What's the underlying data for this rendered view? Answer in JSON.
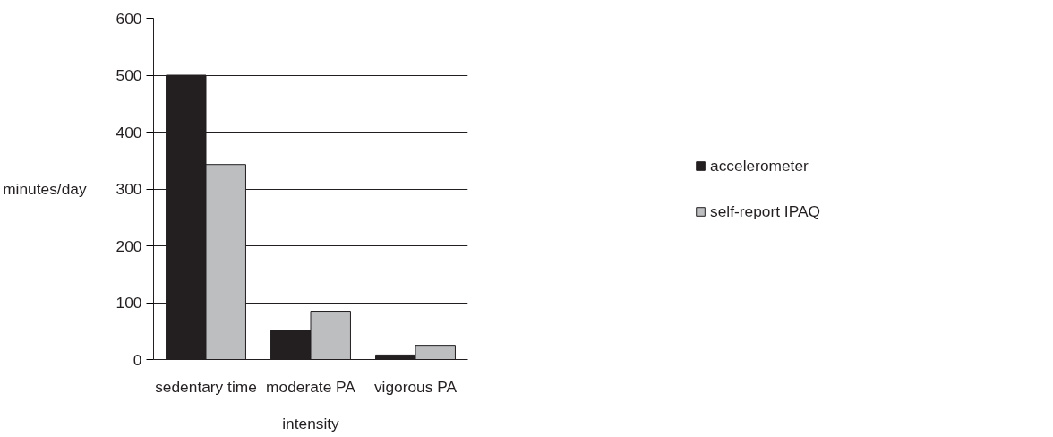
{
  "chart_data": {
    "type": "bar",
    "xlabel": "intensity",
    "ylabel": "minutes/day",
    "categories": [
      "sedentary time",
      "moderate PA",
      "vigorous PA"
    ],
    "series": [
      {
        "name": "accelerometer",
        "color": "#231f20",
        "values": [
          500,
          51,
          8
        ]
      },
      {
        "name": "self-report IPAQ",
        "color": "#bcbec0",
        "values": [
          343,
          85,
          25
        ]
      }
    ],
    "ylim": [
      0,
      600
    ],
    "yticks": [
      0,
      100,
      200,
      300,
      400,
      500,
      600
    ],
    "grid": "y",
    "legend": "right"
  }
}
